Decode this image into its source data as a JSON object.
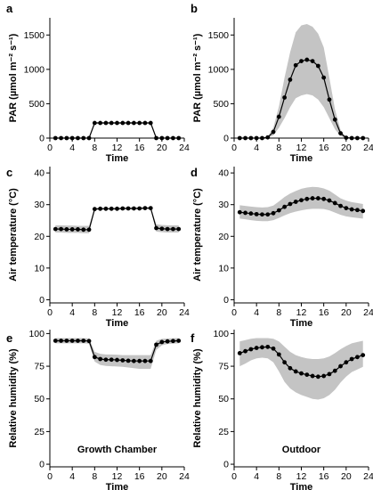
{
  "chart_data": [
    {
      "panel": "a",
      "type": "line",
      "ylabel": "PAR (µmol m⁻² s⁻¹)",
      "xlabel": "Time",
      "xlim": [
        0,
        24
      ],
      "ylim": [
        0,
        1750
      ],
      "xticks": [
        0,
        4,
        8,
        12,
        16,
        20,
        24
      ],
      "yticks": [
        0,
        500,
        1000,
        1500
      ],
      "x": [
        1,
        2,
        3,
        4,
        5,
        6,
        7,
        8,
        9,
        10,
        11,
        12,
        13,
        14,
        15,
        16,
        17,
        18,
        19,
        20,
        21,
        22,
        23
      ],
      "series": [
        {
          "values": [
            0,
            0,
            0,
            0,
            0,
            0,
            0,
            220,
            220,
            220,
            220,
            220,
            220,
            220,
            220,
            220,
            220,
            220,
            0,
            0,
            0,
            0,
            0
          ]
        }
      ],
      "band": {
        "low": [
          0,
          0,
          0,
          0,
          0,
          0,
          0,
          210,
          210,
          210,
          210,
          210,
          210,
          210,
          210,
          210,
          210,
          210,
          0,
          0,
          0,
          0,
          0
        ],
        "high": [
          0,
          0,
          0,
          0,
          0,
          0,
          0,
          230,
          230,
          230,
          230,
          230,
          230,
          230,
          230,
          230,
          230,
          230,
          0,
          0,
          0,
          0,
          0
        ]
      },
      "annotation": ""
    },
    {
      "panel": "b",
      "type": "line",
      "ylabel": "PAR (µmol m⁻² s⁻¹)",
      "xlabel": "Time",
      "xlim": [
        0,
        24
      ],
      "ylim": [
        0,
        1750
      ],
      "xticks": [
        0,
        4,
        8,
        12,
        16,
        20,
        24
      ],
      "yticks": [
        0,
        500,
        1000,
        1500
      ],
      "x": [
        1,
        2,
        3,
        4,
        5,
        6,
        7,
        8,
        9,
        10,
        11,
        12,
        13,
        14,
        15,
        16,
        17,
        18,
        19,
        20,
        21,
        22,
        23
      ],
      "series": [
        {
          "values": [
            0,
            0,
            0,
            0,
            0,
            10,
            90,
            310,
            590,
            850,
            1060,
            1120,
            1140,
            1120,
            1050,
            880,
            560,
            270,
            70,
            5,
            0,
            0,
            0
          ]
        }
      ],
      "band": {
        "low": [
          0,
          0,
          0,
          0,
          0,
          5,
          40,
          150,
          290,
          450,
          580,
          620,
          640,
          620,
          560,
          450,
          290,
          130,
          30,
          0,
          0,
          0,
          0
        ],
        "high": [
          0,
          0,
          0,
          0,
          0,
          20,
          150,
          460,
          880,
          1250,
          1540,
          1640,
          1660,
          1620,
          1520,
          1320,
          880,
          420,
          120,
          10,
          0,
          0,
          0
        ]
      },
      "annotation": ""
    },
    {
      "panel": "c",
      "type": "line",
      "ylabel": "Air temperature (°C)",
      "xlabel": "Time",
      "xlim": [
        0,
        24
      ],
      "ylim": [
        -1,
        42
      ],
      "xticks": [
        0,
        4,
        8,
        12,
        16,
        20,
        24
      ],
      "yticks": [
        0,
        10,
        20,
        30,
        40
      ],
      "x": [
        1,
        2,
        3,
        4,
        5,
        6,
        7,
        8,
        9,
        10,
        11,
        12,
        13,
        14,
        15,
        16,
        17,
        18,
        19,
        20,
        21,
        22,
        23
      ],
      "series": [
        {
          "values": [
            22.3,
            22.3,
            22.2,
            22.2,
            22.2,
            22.1,
            22.1,
            28.6,
            28.7,
            28.7,
            28.7,
            28.7,
            28.8,
            28.8,
            28.8,
            28.8,
            28.9,
            28.9,
            22.6,
            22.4,
            22.3,
            22.3,
            22.3
          ]
        }
      ],
      "band": {
        "low": [
          21.2,
          21.2,
          21.1,
          21.1,
          21.1,
          21.0,
          21.0,
          28.3,
          28.4,
          28.4,
          28.4,
          28.4,
          28.5,
          28.5,
          28.5,
          28.5,
          28.6,
          28.6,
          21.5,
          21.3,
          21.2,
          21.2,
          21.2
        ],
        "high": [
          23.5,
          23.5,
          23.4,
          23.4,
          23.3,
          23.3,
          23.3,
          29.0,
          29.0,
          29.0,
          29.0,
          29.0,
          29.1,
          29.1,
          29.1,
          29.1,
          29.2,
          29.2,
          23.8,
          23.6,
          23.5,
          23.5,
          23.5
        ]
      },
      "annotation": ""
    },
    {
      "panel": "d",
      "type": "line",
      "ylabel": "Air temperature (°C)",
      "xlabel": "Time",
      "xlim": [
        0,
        24
      ],
      "ylim": [
        -1,
        42
      ],
      "xticks": [
        0,
        4,
        8,
        12,
        16,
        20,
        24
      ],
      "yticks": [
        0,
        10,
        20,
        30,
        40
      ],
      "x": [
        1,
        2,
        3,
        4,
        5,
        6,
        7,
        8,
        9,
        10,
        11,
        12,
        13,
        14,
        15,
        16,
        17,
        18,
        19,
        20,
        21,
        22,
        23
      ],
      "series": [
        {
          "values": [
            27.6,
            27.4,
            27.2,
            27.0,
            26.9,
            26.9,
            27.3,
            28.2,
            29.3,
            30.2,
            30.9,
            31.4,
            31.8,
            32.0,
            32.0,
            31.8,
            31.3,
            30.5,
            29.6,
            28.9,
            28.5,
            28.3,
            28.0
          ]
        }
      ],
      "band": {
        "low": [
          25.6,
          25.4,
          25.1,
          24.9,
          24.8,
          24.8,
          25.1,
          25.8,
          26.6,
          27.3,
          27.8,
          28.2,
          28.5,
          28.7,
          28.7,
          28.6,
          28.2,
          27.5,
          26.8,
          26.3,
          26.0,
          25.8,
          25.6
        ],
        "high": [
          29.8,
          29.6,
          29.4,
          29.2,
          29.1,
          29.2,
          29.7,
          31.0,
          32.4,
          33.5,
          34.3,
          35.0,
          35.4,
          35.6,
          35.5,
          35.1,
          34.4,
          33.2,
          32.0,
          31.3,
          30.8,
          30.5,
          30.2
        ]
      },
      "annotation": ""
    },
    {
      "panel": "e",
      "type": "line",
      "ylabel": "Relative humidity (%)",
      "xlabel": "Time",
      "xlim": [
        0,
        24
      ],
      "ylim": [
        -2,
        103
      ],
      "xticks": [
        0,
        4,
        8,
        12,
        16,
        20,
        24
      ],
      "yticks": [
        0,
        25,
        50,
        75,
        100
      ],
      "x": [
        1,
        2,
        3,
        4,
        5,
        6,
        7,
        8,
        9,
        10,
        11,
        12,
        13,
        14,
        15,
        16,
        17,
        18,
        19,
        20,
        21,
        22,
        23
      ],
      "series": [
        {
          "values": [
            94.5,
            94.5,
            94.5,
            94.5,
            94.5,
            94.5,
            94.3,
            82.0,
            80.5,
            80.0,
            80.0,
            79.8,
            79.5,
            79.2,
            79.0,
            79.0,
            79.0,
            79.0,
            91.5,
            93.5,
            94.0,
            94.3,
            94.5
          ]
        }
      ],
      "band": {
        "low": [
          92.5,
          92.5,
          92.5,
          92.5,
          92.5,
          92.5,
          92.3,
          78.5,
          76.0,
          75.2,
          75.0,
          74.8,
          74.5,
          74.0,
          73.5,
          73.0,
          73.0,
          73.0,
          87.5,
          91.0,
          92.0,
          92.3,
          92.5
        ],
        "high": [
          96.5,
          96.5,
          96.5,
          96.5,
          96.5,
          96.5,
          96.3,
          86.0,
          84.5,
          84.0,
          84.0,
          83.8,
          83.5,
          83.5,
          83.5,
          83.5,
          83.5,
          83.5,
          94.5,
          96.0,
          96.2,
          96.4,
          96.5
        ]
      },
      "annotation": "Growth Chamber"
    },
    {
      "panel": "f",
      "type": "line",
      "ylabel": "Relative humidity (%)",
      "xlabel": "Time",
      "xlim": [
        0,
        24
      ],
      "ylim": [
        -2,
        103
      ],
      "xticks": [
        0,
        4,
        8,
        12,
        16,
        20,
        24
      ],
      "yticks": [
        0,
        25,
        50,
        75,
        100
      ],
      "x": [
        1,
        2,
        3,
        4,
        5,
        6,
        7,
        8,
        9,
        10,
        11,
        12,
        13,
        14,
        15,
        16,
        17,
        18,
        19,
        20,
        21,
        22,
        23
      ],
      "series": [
        {
          "values": [
            85.0,
            86.5,
            88.0,
            89.0,
            89.5,
            89.8,
            88.5,
            84.0,
            78.0,
            73.5,
            71.0,
            69.5,
            68.5,
            67.5,
            67.0,
            67.5,
            69.0,
            71.5,
            75.0,
            78.0,
            80.5,
            82.0,
            83.5
          ]
        }
      ],
      "band": {
        "low": [
          75.0,
          77.0,
          79.5,
          81.0,
          81.5,
          81.0,
          78.0,
          71.0,
          63.0,
          58.0,
          55.0,
          53.0,
          51.5,
          50.0,
          49.5,
          50.5,
          53.0,
          57.0,
          62.5,
          67.0,
          70.5,
          72.5,
          74.5
        ],
        "high": [
          94.0,
          95.0,
          96.0,
          96.5,
          96.5,
          96.5,
          96.0,
          94.0,
          90.0,
          86.0,
          83.5,
          82.0,
          81.0,
          80.5,
          80.5,
          81.0,
          82.5,
          85.0,
          88.0,
          90.5,
          92.5,
          93.5,
          94.5
        ]
      },
      "annotation": "Outdoor"
    }
  ]
}
